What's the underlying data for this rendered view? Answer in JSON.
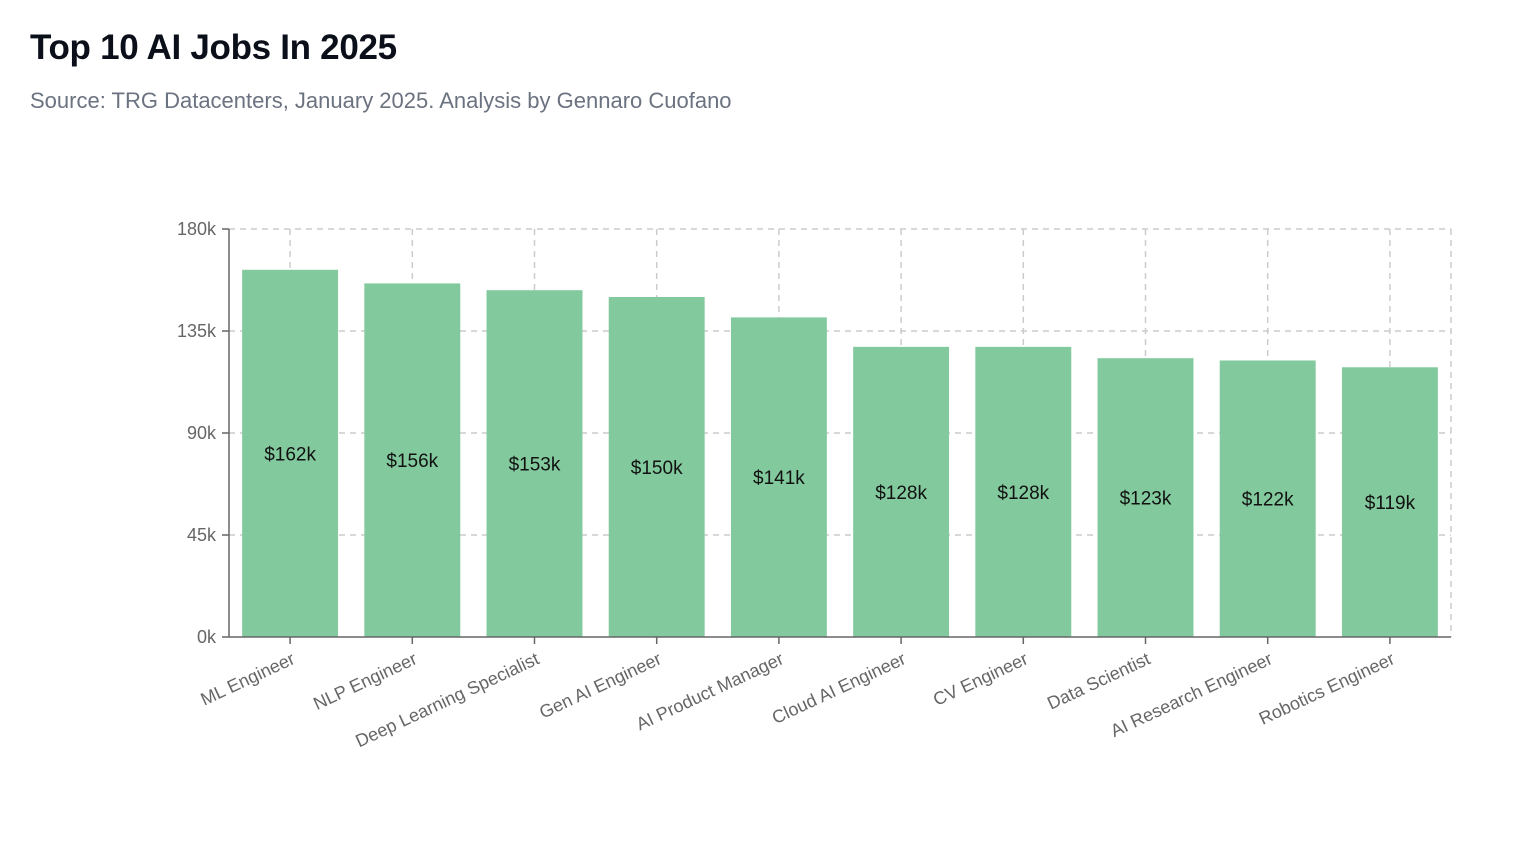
{
  "header": {
    "title": "Top 10 AI Jobs In 2025",
    "subtitle": "Source: TRG Datacenters, January 2025. Analysis by Gennaro Cuofano"
  },
  "chart_data": {
    "type": "bar",
    "categories": [
      "ML Engineer",
      "NLP Engineer",
      "Deep Learning Specialist",
      "Gen AI Engineer",
      "AI Product Manager",
      "Cloud AI Engineer",
      "CV Engineer",
      "Data Scientist",
      "AI Research Engineer",
      "Robotics Engineer"
    ],
    "values": [
      162000,
      156000,
      153000,
      150000,
      141000,
      128000,
      128000,
      123000,
      122000,
      119000
    ],
    "data_labels": [
      "$162k",
      "$156k",
      "$153k",
      "$150k",
      "$141k",
      "$128k",
      "$128k",
      "$123k",
      "$122k",
      "$119k"
    ],
    "ylim": [
      0,
      180000
    ],
    "yticks": [
      0,
      45000,
      90000,
      135000,
      180000
    ],
    "ytick_labels": [
      "0k",
      "45k",
      "90k",
      "135k",
      "180k"
    ],
    "grid": true,
    "colors": {
      "bar": "#82ca9d",
      "grid": "#cccccc",
      "axis": "#666666"
    }
  }
}
